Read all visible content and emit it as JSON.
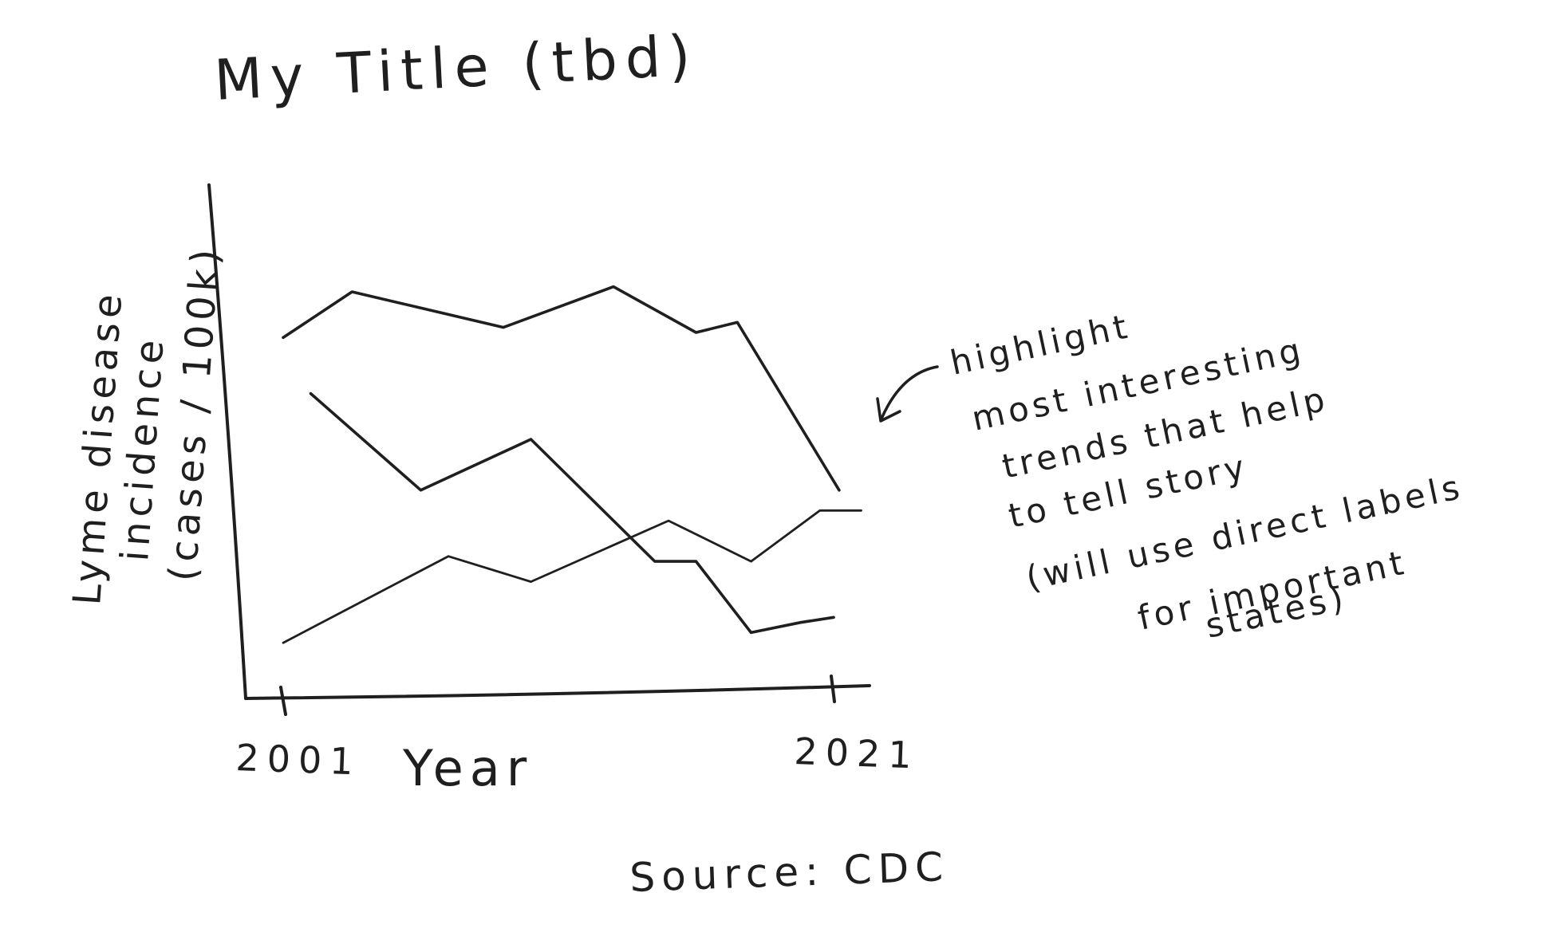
{
  "chart_data": {
    "type": "line",
    "title": "My Title (tbd)",
    "xlabel": "Year",
    "ylabel_lines": [
      "Lyme disease",
      "incidence",
      "(cases / 100k)"
    ],
    "x_ticks": [
      "2001",
      "2021"
    ],
    "xlim": [
      2001,
      2021
    ],
    "ylim": [
      0,
      100
    ],
    "series": [
      {
        "x": [
          2001,
          2003.5,
          2009,
          2013,
          2016,
          2017.5,
          2021.2
        ],
        "values": [
          70,
          79,
          72,
          80,
          71,
          73,
          40
        ],
        "color": "#2a2a2a"
      },
      {
        "x": [
          2002,
          2006,
          2010,
          2014.5,
          2016,
          2018,
          2019.8,
          2021
        ],
        "values": [
          59,
          40,
          50,
          26,
          26,
          12,
          14,
          15
        ],
        "color": "#2a2a2a"
      },
      {
        "x": [
          2001,
          2007,
          2010,
          2015,
          2018,
          2020.5,
          2022
        ],
        "values": [
          10,
          27,
          22,
          34,
          26,
          36,
          36
        ],
        "color": "#6e6e6e"
      }
    ],
    "grid": false,
    "legend": "none"
  },
  "annotation": {
    "lines": [
      "highlight",
      "most interesting",
      "trends that help",
      "to tell story",
      "(will use direct labels",
      "for important",
      "states)"
    ]
  },
  "source": "Source: CDC"
}
